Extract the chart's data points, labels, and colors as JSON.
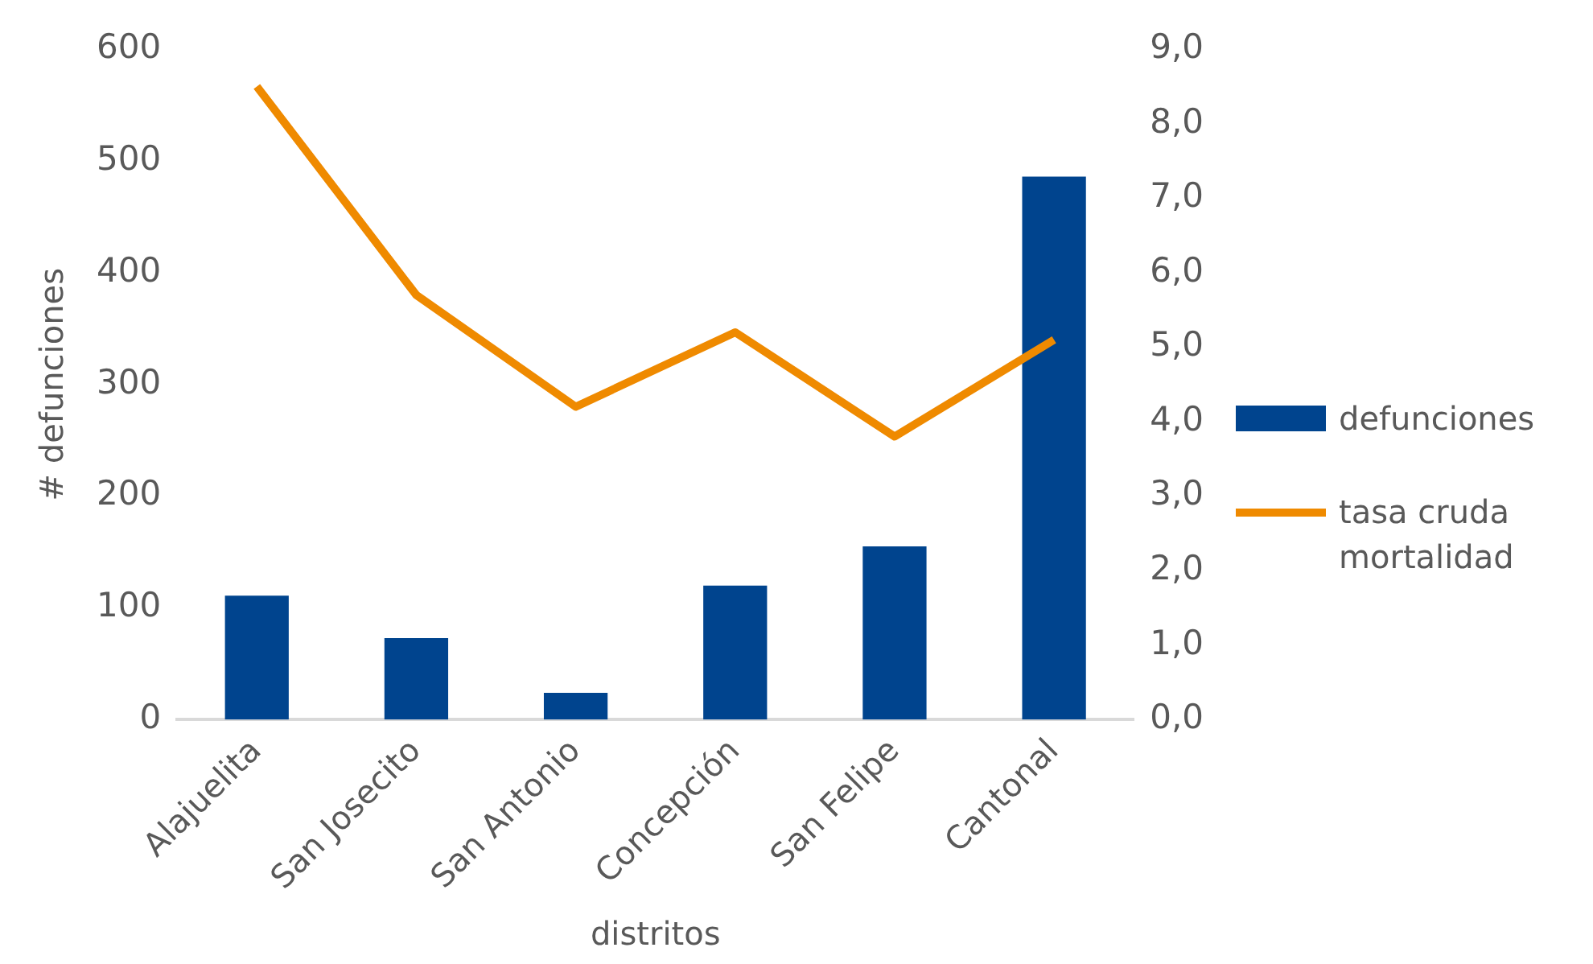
{
  "chart_data": {
    "type": "bar",
    "xlabel": "distritos",
    "ylabel": "# defunciones",
    "categories": [
      "Alajuelita",
      "San Josecito",
      "San Antonio",
      "Concepción",
      "San Felipe",
      "Cantonal"
    ],
    "series": [
      {
        "name": "defunciones",
        "color": "#00448e",
        "values": [
          111,
          73,
          24,
          120,
          155,
          486
        ]
      },
      {
        "name": "tasa cruda mortalidad",
        "type": "line",
        "axis": "y2",
        "color": "#ef8a00",
        "values": [
          8.5,
          5.7,
          4.2,
          5.2,
          3.8,
          5.1
        ],
        "marker": "none"
      }
    ],
    "ylim": [
      0,
      600
    ],
    "yticks": [
      0,
      100,
      200,
      300,
      400,
      500,
      600
    ],
    "y2lim": [
      0,
      9
    ],
    "y2ticks": [
      {
        "value": 0,
        "label": "0,0"
      },
      {
        "value": 1,
        "label": "1,0"
      },
      {
        "value": 2,
        "label": "2,0"
      },
      {
        "value": 3,
        "label": "3,0"
      },
      {
        "value": 4,
        "label": "4,0"
      },
      {
        "value": 5,
        "label": "5,0"
      },
      {
        "value": 6,
        "label": "6,0"
      },
      {
        "value": 7,
        "label": "7,0"
      },
      {
        "value": 8,
        "label": "8,0"
      },
      {
        "value": 9,
        "label": "9,0"
      }
    ],
    "grid": false,
    "legend": "right"
  }
}
